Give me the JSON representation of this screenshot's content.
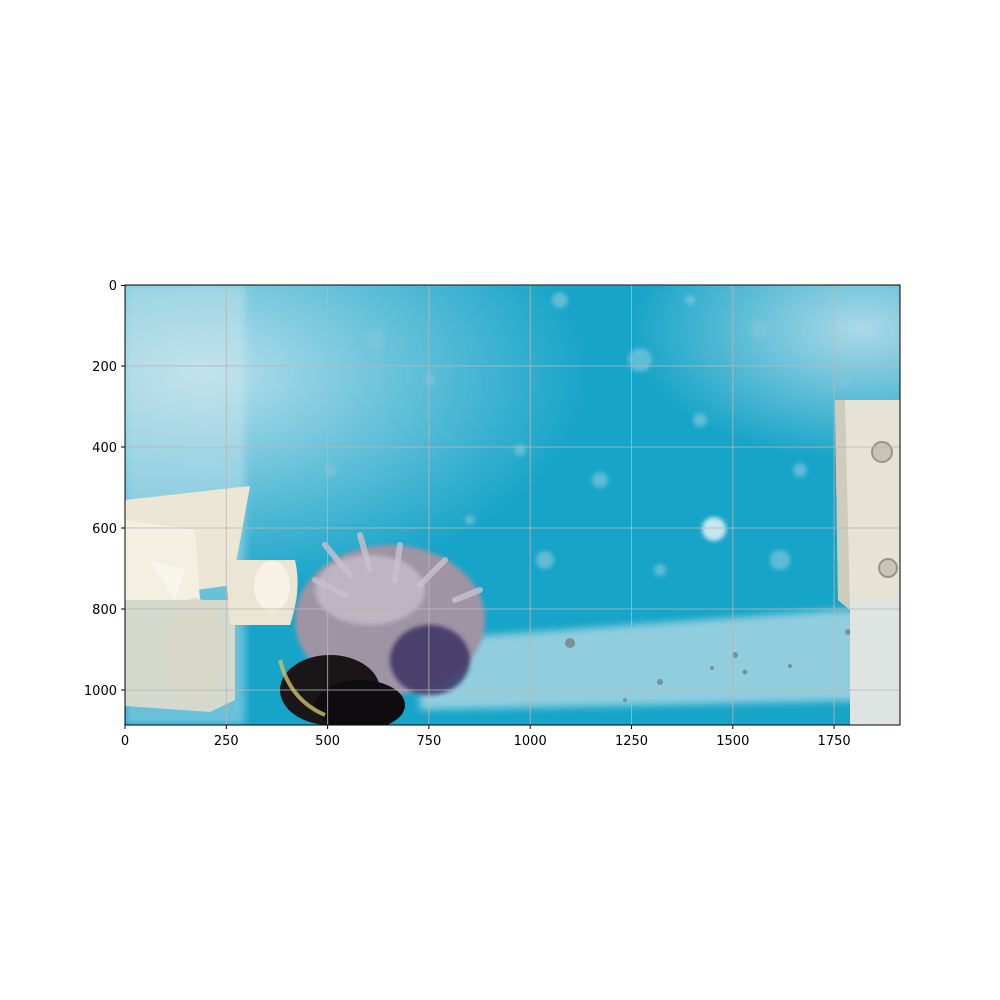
{
  "figure": {
    "x_ticks": [
      "0",
      "250",
      "500",
      "750",
      "1000",
      "1250",
      "1500",
      "1750"
    ],
    "y_ticks": [
      "0",
      "200",
      "400",
      "600",
      "800",
      "1000"
    ],
    "grid": true,
    "image_content": "underwater tank scene: blue speckled tank wall, beige PVC pipes at left, brown-purple fuzzy sea creature bottom-center, white bracket with screws at right",
    "colors": {
      "water": "#16a4c8",
      "pipe": "#ece7d5",
      "creature": "#8c8098",
      "bracket": "#e6e2d6",
      "grid": "#b8b8b8"
    }
  }
}
